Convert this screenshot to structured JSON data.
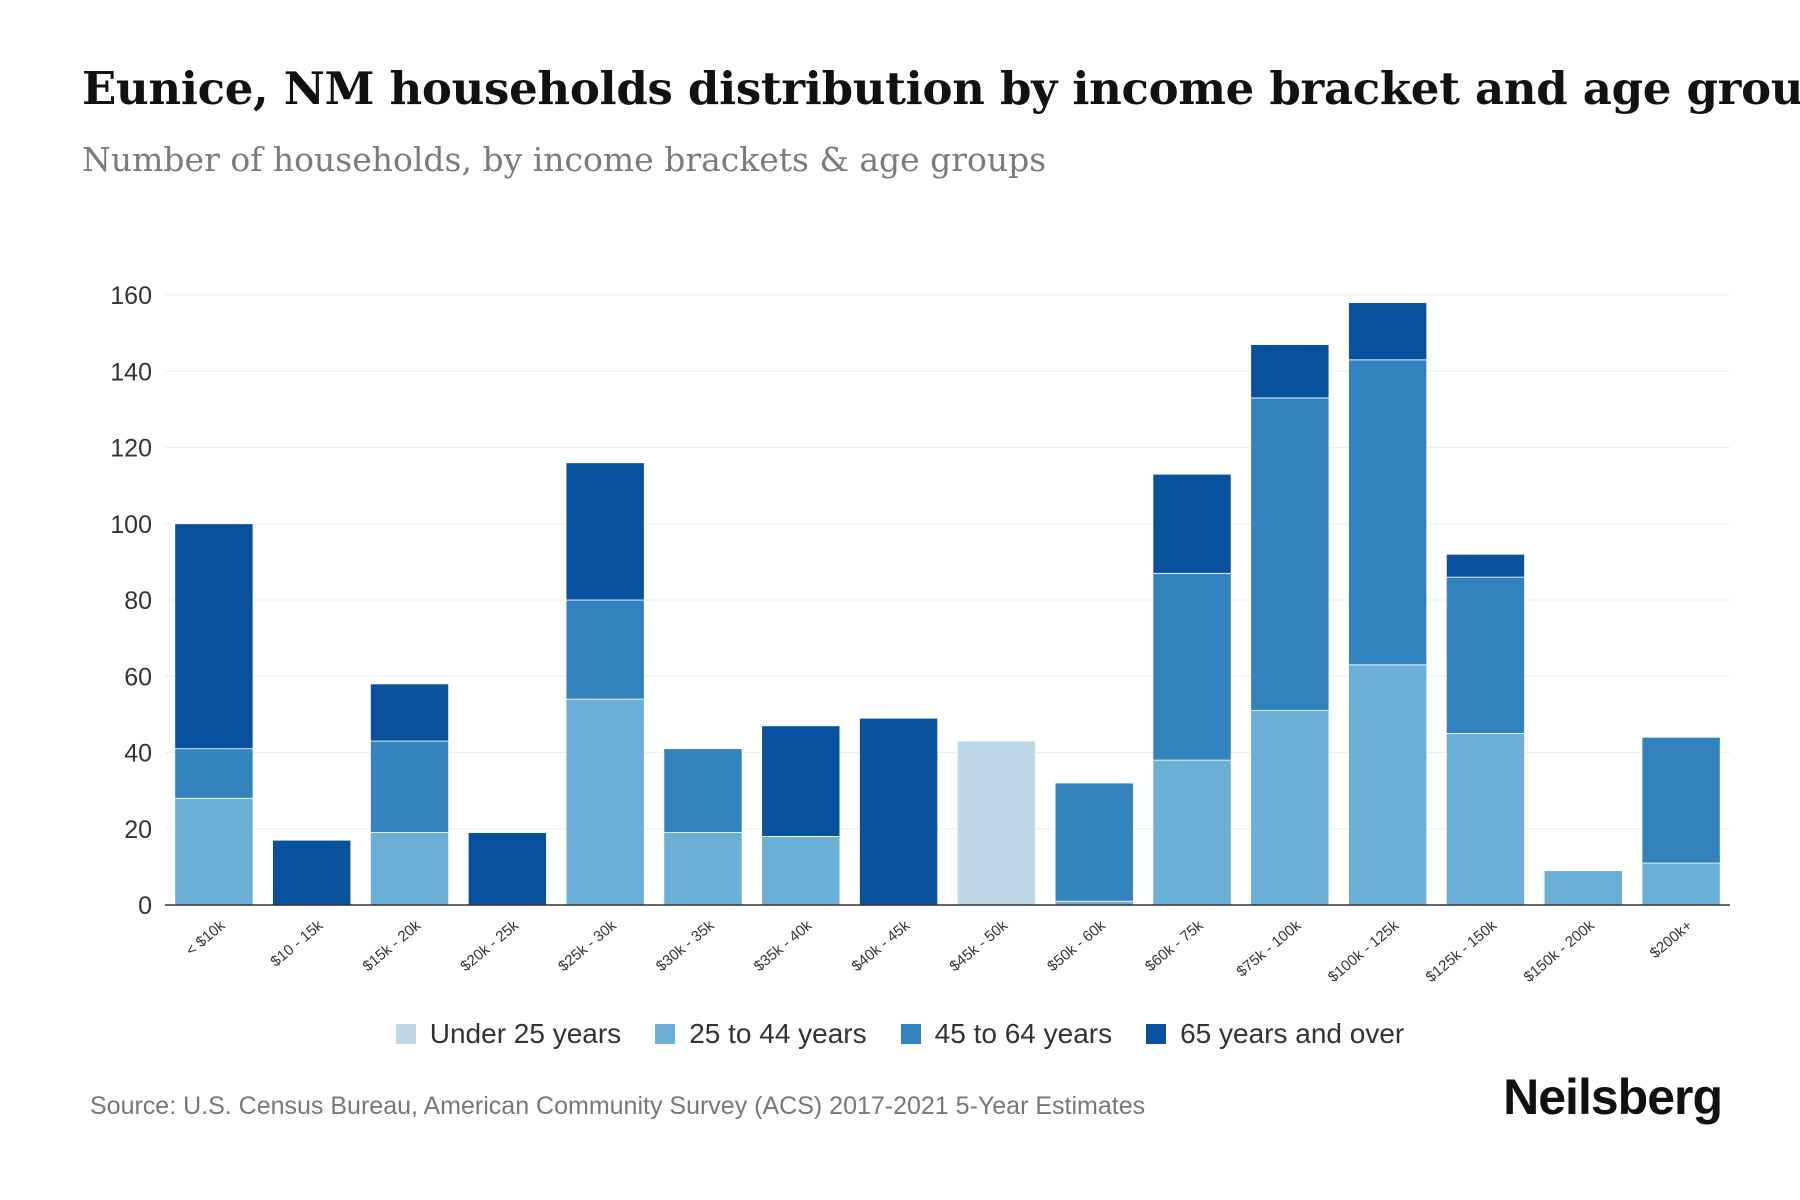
{
  "title": "Eunice, NM households distribution by income bracket and age group",
  "subtitle": "Number of households, by income brackets & age groups",
  "source": "Source: U.S. Census Bureau, American Community Survey (ACS) 2017-2021 5-Year Estimates",
  "brand": "Neilsberg",
  "colors": {
    "under_25": "#bdd7e7",
    "age_25_44": "#6baed6",
    "age_45_64": "#3182bd",
    "age_65_over": "#08519c",
    "grid": "#eeeeee",
    "axis": "#333333"
  },
  "chart_data": {
    "type": "bar",
    "stacked": true,
    "title": "Eunice, NM households distribution by income bracket and age group",
    "subtitle": "Number of households, by income brackets & age groups",
    "xlabel": "",
    "ylabel": "",
    "ylim": [
      0,
      160
    ],
    "yticks": [
      0,
      20,
      40,
      60,
      80,
      100,
      120,
      140,
      160
    ],
    "grid": true,
    "legend_position": "bottom",
    "categories": [
      "< $10k",
      "$10 - 15k",
      "$15k - 20k",
      "$20k - 25k",
      "$25k - 30k",
      "$30k - 35k",
      "$35k - 40k",
      "$40k - 45k",
      "$45k - 50k",
      "$50k - 60k",
      "$60k - 75k",
      "$75k - 100k",
      "$100k - 125k",
      "$125k - 150k",
      "$150k - 200k",
      "$200k+"
    ],
    "series": [
      {
        "name": "Under 25 years",
        "color": "#bdd7e7",
        "values": [
          0,
          0,
          0,
          0,
          0,
          0,
          0,
          0,
          43,
          0,
          0,
          0,
          0,
          0,
          0,
          0
        ]
      },
      {
        "name": "25 to 44 years",
        "color": "#6baed6",
        "values": [
          28,
          0,
          19,
          0,
          54,
          19,
          18,
          0,
          0,
          1,
          38,
          51,
          63,
          45,
          9,
          11
        ]
      },
      {
        "name": "45 to 64 years",
        "color": "#3182bd",
        "values": [
          13,
          0,
          24,
          0,
          26,
          22,
          0,
          0,
          0,
          31,
          49,
          82,
          80,
          41,
          0,
          33
        ]
      },
      {
        "name": "65 years and over",
        "color": "#08519c",
        "values": [
          59,
          17,
          15,
          19,
          36,
          0,
          29,
          49,
          0,
          0,
          26,
          14,
          15,
          6,
          0,
          0
        ]
      }
    ]
  }
}
